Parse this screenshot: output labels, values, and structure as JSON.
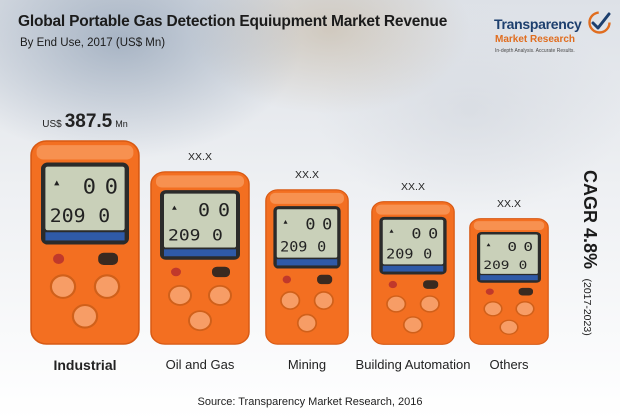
{
  "title": "Global Portable Gas Detection Equiupment Market Revenue",
  "subtitle": "By End Use, 2017 (US$ Mn)",
  "logo": {
    "line1": "Transparency",
    "line2": "Market Research",
    "tagline": "In-depth Analysis. Accurate Results."
  },
  "source": "Source: Transparency Market Research, 2016",
  "cagr": {
    "label": "CAGR 4.8%",
    "period": "(2017-2023)"
  },
  "colors": {
    "device_orange": "#f36f21",
    "device_dark": "#d85a14",
    "screen": "#c9d0b9",
    "brand_blue": "#1d3f6e",
    "brand_orange": "#e06d1f"
  },
  "chart_data": {
    "type": "bar",
    "title": "Global Portable Gas Detection Equiupment Market Revenue",
    "subtitle": "By End Use, 2017 (US$ Mn)",
    "categories": [
      "Industrial",
      "Oil and Gas",
      "Mining",
      "Building Automation",
      "Others"
    ],
    "value_labels": [
      "387.5",
      "XX.X",
      "XX.X",
      "XX.X",
      "XX.X"
    ],
    "value_prefix": "US$",
    "value_unit": "Mn",
    "values": [
      387.5,
      null,
      null,
      null,
      null
    ],
    "relative_heights": [
      1.0,
      0.85,
      0.76,
      0.7,
      0.62
    ],
    "legend": "none",
    "grid": false
  }
}
